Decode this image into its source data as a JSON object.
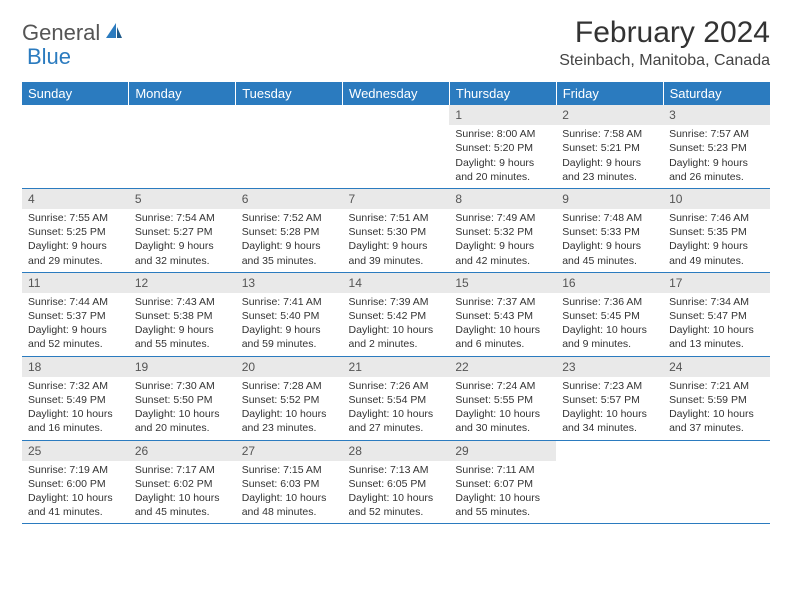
{
  "brand": {
    "text1": "General",
    "text2": "Blue"
  },
  "title": "February 2024",
  "location": "Steinbach, Manitoba, Canada",
  "colors": {
    "header_bg": "#2b7bbf",
    "header_fg": "#ffffff",
    "daynum_bg": "#e9e9e9",
    "rule": "#2b7bbf"
  },
  "weekdays": [
    "Sunday",
    "Monday",
    "Tuesday",
    "Wednesday",
    "Thursday",
    "Friday",
    "Saturday"
  ],
  "weeks": [
    [
      null,
      null,
      null,
      null,
      {
        "n": "1",
        "sr": "Sunrise: 8:00 AM",
        "ss": "Sunset: 5:20 PM",
        "d1": "Daylight: 9 hours",
        "d2": "and 20 minutes."
      },
      {
        "n": "2",
        "sr": "Sunrise: 7:58 AM",
        "ss": "Sunset: 5:21 PM",
        "d1": "Daylight: 9 hours",
        "d2": "and 23 minutes."
      },
      {
        "n": "3",
        "sr": "Sunrise: 7:57 AM",
        "ss": "Sunset: 5:23 PM",
        "d1": "Daylight: 9 hours",
        "d2": "and 26 minutes."
      }
    ],
    [
      {
        "n": "4",
        "sr": "Sunrise: 7:55 AM",
        "ss": "Sunset: 5:25 PM",
        "d1": "Daylight: 9 hours",
        "d2": "and 29 minutes."
      },
      {
        "n": "5",
        "sr": "Sunrise: 7:54 AM",
        "ss": "Sunset: 5:27 PM",
        "d1": "Daylight: 9 hours",
        "d2": "and 32 minutes."
      },
      {
        "n": "6",
        "sr": "Sunrise: 7:52 AM",
        "ss": "Sunset: 5:28 PM",
        "d1": "Daylight: 9 hours",
        "d2": "and 35 minutes."
      },
      {
        "n": "7",
        "sr": "Sunrise: 7:51 AM",
        "ss": "Sunset: 5:30 PM",
        "d1": "Daylight: 9 hours",
        "d2": "and 39 minutes."
      },
      {
        "n": "8",
        "sr": "Sunrise: 7:49 AM",
        "ss": "Sunset: 5:32 PM",
        "d1": "Daylight: 9 hours",
        "d2": "and 42 minutes."
      },
      {
        "n": "9",
        "sr": "Sunrise: 7:48 AM",
        "ss": "Sunset: 5:33 PM",
        "d1": "Daylight: 9 hours",
        "d2": "and 45 minutes."
      },
      {
        "n": "10",
        "sr": "Sunrise: 7:46 AM",
        "ss": "Sunset: 5:35 PM",
        "d1": "Daylight: 9 hours",
        "d2": "and 49 minutes."
      }
    ],
    [
      {
        "n": "11",
        "sr": "Sunrise: 7:44 AM",
        "ss": "Sunset: 5:37 PM",
        "d1": "Daylight: 9 hours",
        "d2": "and 52 minutes."
      },
      {
        "n": "12",
        "sr": "Sunrise: 7:43 AM",
        "ss": "Sunset: 5:38 PM",
        "d1": "Daylight: 9 hours",
        "d2": "and 55 minutes."
      },
      {
        "n": "13",
        "sr": "Sunrise: 7:41 AM",
        "ss": "Sunset: 5:40 PM",
        "d1": "Daylight: 9 hours",
        "d2": "and 59 minutes."
      },
      {
        "n": "14",
        "sr": "Sunrise: 7:39 AM",
        "ss": "Sunset: 5:42 PM",
        "d1": "Daylight: 10 hours",
        "d2": "and 2 minutes."
      },
      {
        "n": "15",
        "sr": "Sunrise: 7:37 AM",
        "ss": "Sunset: 5:43 PM",
        "d1": "Daylight: 10 hours",
        "d2": "and 6 minutes."
      },
      {
        "n": "16",
        "sr": "Sunrise: 7:36 AM",
        "ss": "Sunset: 5:45 PM",
        "d1": "Daylight: 10 hours",
        "d2": "and 9 minutes."
      },
      {
        "n": "17",
        "sr": "Sunrise: 7:34 AM",
        "ss": "Sunset: 5:47 PM",
        "d1": "Daylight: 10 hours",
        "d2": "and 13 minutes."
      }
    ],
    [
      {
        "n": "18",
        "sr": "Sunrise: 7:32 AM",
        "ss": "Sunset: 5:49 PM",
        "d1": "Daylight: 10 hours",
        "d2": "and 16 minutes."
      },
      {
        "n": "19",
        "sr": "Sunrise: 7:30 AM",
        "ss": "Sunset: 5:50 PM",
        "d1": "Daylight: 10 hours",
        "d2": "and 20 minutes."
      },
      {
        "n": "20",
        "sr": "Sunrise: 7:28 AM",
        "ss": "Sunset: 5:52 PM",
        "d1": "Daylight: 10 hours",
        "d2": "and 23 minutes."
      },
      {
        "n": "21",
        "sr": "Sunrise: 7:26 AM",
        "ss": "Sunset: 5:54 PM",
        "d1": "Daylight: 10 hours",
        "d2": "and 27 minutes."
      },
      {
        "n": "22",
        "sr": "Sunrise: 7:24 AM",
        "ss": "Sunset: 5:55 PM",
        "d1": "Daylight: 10 hours",
        "d2": "and 30 minutes."
      },
      {
        "n": "23",
        "sr": "Sunrise: 7:23 AM",
        "ss": "Sunset: 5:57 PM",
        "d1": "Daylight: 10 hours",
        "d2": "and 34 minutes."
      },
      {
        "n": "24",
        "sr": "Sunrise: 7:21 AM",
        "ss": "Sunset: 5:59 PM",
        "d1": "Daylight: 10 hours",
        "d2": "and 37 minutes."
      }
    ],
    [
      {
        "n": "25",
        "sr": "Sunrise: 7:19 AM",
        "ss": "Sunset: 6:00 PM",
        "d1": "Daylight: 10 hours",
        "d2": "and 41 minutes."
      },
      {
        "n": "26",
        "sr": "Sunrise: 7:17 AM",
        "ss": "Sunset: 6:02 PM",
        "d1": "Daylight: 10 hours",
        "d2": "and 45 minutes."
      },
      {
        "n": "27",
        "sr": "Sunrise: 7:15 AM",
        "ss": "Sunset: 6:03 PM",
        "d1": "Daylight: 10 hours",
        "d2": "and 48 minutes."
      },
      {
        "n": "28",
        "sr": "Sunrise: 7:13 AM",
        "ss": "Sunset: 6:05 PM",
        "d1": "Daylight: 10 hours",
        "d2": "and 52 minutes."
      },
      {
        "n": "29",
        "sr": "Sunrise: 7:11 AM",
        "ss": "Sunset: 6:07 PM",
        "d1": "Daylight: 10 hours",
        "d2": "and 55 minutes."
      },
      null,
      null
    ]
  ]
}
